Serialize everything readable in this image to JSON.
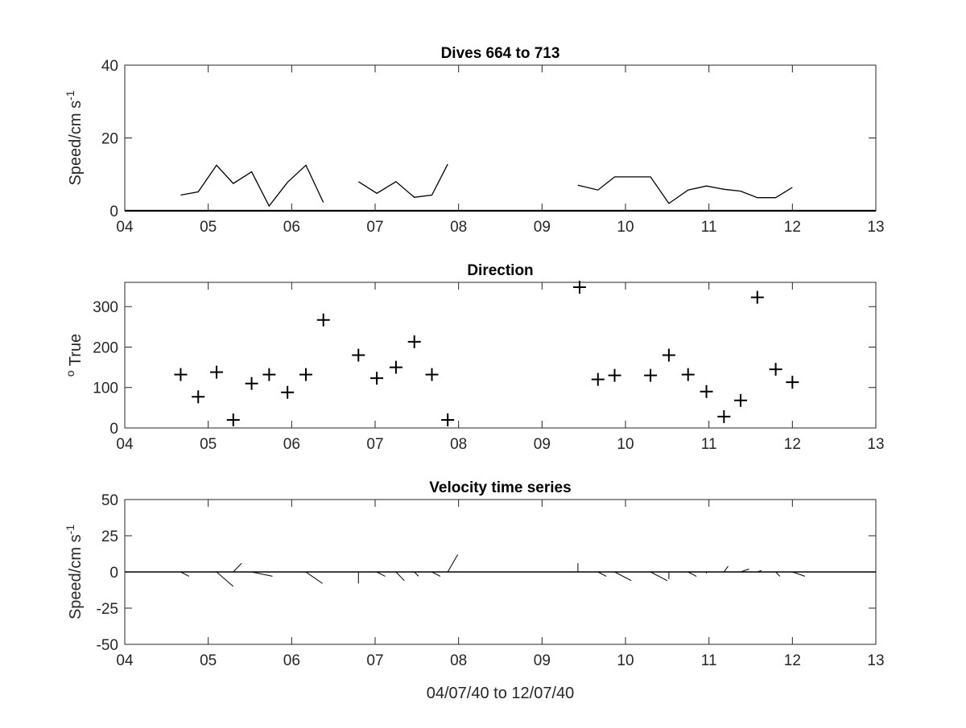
{
  "chart_data": [
    {
      "type": "line",
      "title": "Dives 664 to 713",
      "ylabel": "Speed/cm s",
      "ylabel_superscript": "-1",
      "xlabel": "",
      "xlim": [
        4,
        13
      ],
      "ylim": [
        0,
        40
      ],
      "xticks": [
        "04",
        "05",
        "06",
        "07",
        "08",
        "09",
        "10",
        "11",
        "12",
        "13"
      ],
      "yticks": [
        "0",
        "20",
        "40"
      ],
      "zero_line": true,
      "series": [
        {
          "segments": [
            [
              [
                4.67,
                4.3
              ],
              [
                4.88,
                5.2
              ],
              [
                5.1,
                12.5
              ],
              [
                5.3,
                7.5
              ],
              [
                5.52,
                10.7
              ],
              [
                5.73,
                1.3
              ],
              [
                5.95,
                7.8
              ],
              [
                6.17,
                12.5
              ],
              [
                6.38,
                2.3
              ]
            ],
            [
              [
                6.8,
                8.0
              ],
              [
                7.02,
                4.8
              ],
              [
                7.25,
                8.0
              ],
              [
                7.47,
                3.7
              ],
              [
                7.68,
                4.3
              ],
              [
                7.87,
                12.8
              ]
            ],
            [
              [
                9.43,
                7.0
              ],
              [
                9.67,
                5.7
              ],
              [
                9.87,
                9.3
              ],
              [
                10.3,
                9.3
              ],
              [
                10.52,
                2.0
              ],
              [
                10.75,
                5.7
              ],
              [
                10.97,
                6.8
              ],
              [
                11.18,
                5.9
              ],
              [
                11.38,
                5.4
              ],
              [
                11.58,
                3.6
              ],
              [
                11.8,
                3.6
              ],
              [
                12.0,
                6.4
              ]
            ]
          ]
        }
      ]
    },
    {
      "type": "scatter",
      "title": "Direction",
      "ylabel": "True",
      "ylabel_superscript_prefix": "o",
      "xlabel": "",
      "xlim": [
        4,
        13
      ],
      "ylim": [
        0,
        360
      ],
      "xticks": [
        "04",
        "05",
        "06",
        "07",
        "08",
        "09",
        "10",
        "11",
        "12",
        "13"
      ],
      "yticks": [
        "0",
        "100",
        "200",
        "300"
      ],
      "marker": "+",
      "points": [
        [
          4.67,
          132
        ],
        [
          4.88,
          77
        ],
        [
          5.1,
          138
        ],
        [
          5.3,
          20
        ],
        [
          5.52,
          110
        ],
        [
          5.73,
          132
        ],
        [
          5.95,
          88
        ],
        [
          6.17,
          132
        ],
        [
          6.38,
          267
        ],
        [
          6.8,
          180
        ],
        [
          7.02,
          123
        ],
        [
          7.25,
          150
        ],
        [
          7.47,
          213
        ],
        [
          7.68,
          132
        ],
        [
          7.87,
          20
        ],
        [
          9.45,
          348
        ],
        [
          9.67,
          120
        ],
        [
          9.87,
          130
        ],
        [
          10.3,
          130
        ],
        [
          10.52,
          180
        ],
        [
          10.75,
          132
        ],
        [
          10.97,
          90
        ],
        [
          11.18,
          28
        ],
        [
          11.38,
          68
        ],
        [
          11.58,
          323
        ],
        [
          11.8,
          145
        ],
        [
          12.0,
          113
        ]
      ]
    },
    {
      "type": "line",
      "title": "Velocity time series",
      "ylabel": "Speed/cm s",
      "ylabel_superscript": "-1",
      "xlabel": "04/07/40 to 12/07/40",
      "xlim": [
        4,
        13
      ],
      "ylim": [
        -50,
        50
      ],
      "xticks": [
        "04",
        "05",
        "06",
        "07",
        "08",
        "09",
        "10",
        "11",
        "12",
        "13"
      ],
      "yticks": [
        "-50",
        "-25",
        "0",
        "25",
        "50"
      ],
      "zero_line": true,
      "vectors": [
        {
          "x": 4.67,
          "u": 0.1,
          "v": -3
        },
        {
          "x": 4.88,
          "u": 0.0,
          "v": 0.0
        },
        {
          "x": 5.1,
          "u": 0.2,
          "v": -10
        },
        {
          "x": 5.3,
          "u": 0.1,
          "v": 6
        },
        {
          "x": 5.52,
          "u": 0.25,
          "v": -3
        },
        {
          "x": 5.73,
          "u": 0.0,
          "v": 0.0
        },
        {
          "x": 6.17,
          "u": 0.2,
          "v": -8
        },
        {
          "x": 6.8,
          "u": 0.0,
          "v": -8
        },
        {
          "x": 7.02,
          "u": 0.1,
          "v": -3
        },
        {
          "x": 7.25,
          "u": 0.1,
          "v": -6
        },
        {
          "x": 7.47,
          "u": 0.05,
          "v": -3
        },
        {
          "x": 7.68,
          "u": 0.1,
          "v": -3
        },
        {
          "x": 7.87,
          "u": 0.12,
          "v": 12
        },
        {
          "x": 9.43,
          "u": 0.0,
          "v": 6
        },
        {
          "x": 9.67,
          "u": 0.1,
          "v": -3
        },
        {
          "x": 9.87,
          "u": 0.2,
          "v": -6
        },
        {
          "x": 10.3,
          "u": 0.2,
          "v": -6
        },
        {
          "x": 10.52,
          "u": 0.0,
          "v": -5
        },
        {
          "x": 10.75,
          "u": 0.1,
          "v": -3
        },
        {
          "x": 10.97,
          "u": 0.0,
          "v": -1
        },
        {
          "x": 11.18,
          "u": 0.05,
          "v": 4
        },
        {
          "x": 11.38,
          "u": 0.1,
          "v": 2
        },
        {
          "x": 11.58,
          "u": 0.05,
          "v": 1
        },
        {
          "x": 11.8,
          "u": 0.05,
          "v": -3
        },
        {
          "x": 12.0,
          "u": 0.15,
          "v": -3
        }
      ]
    }
  ]
}
